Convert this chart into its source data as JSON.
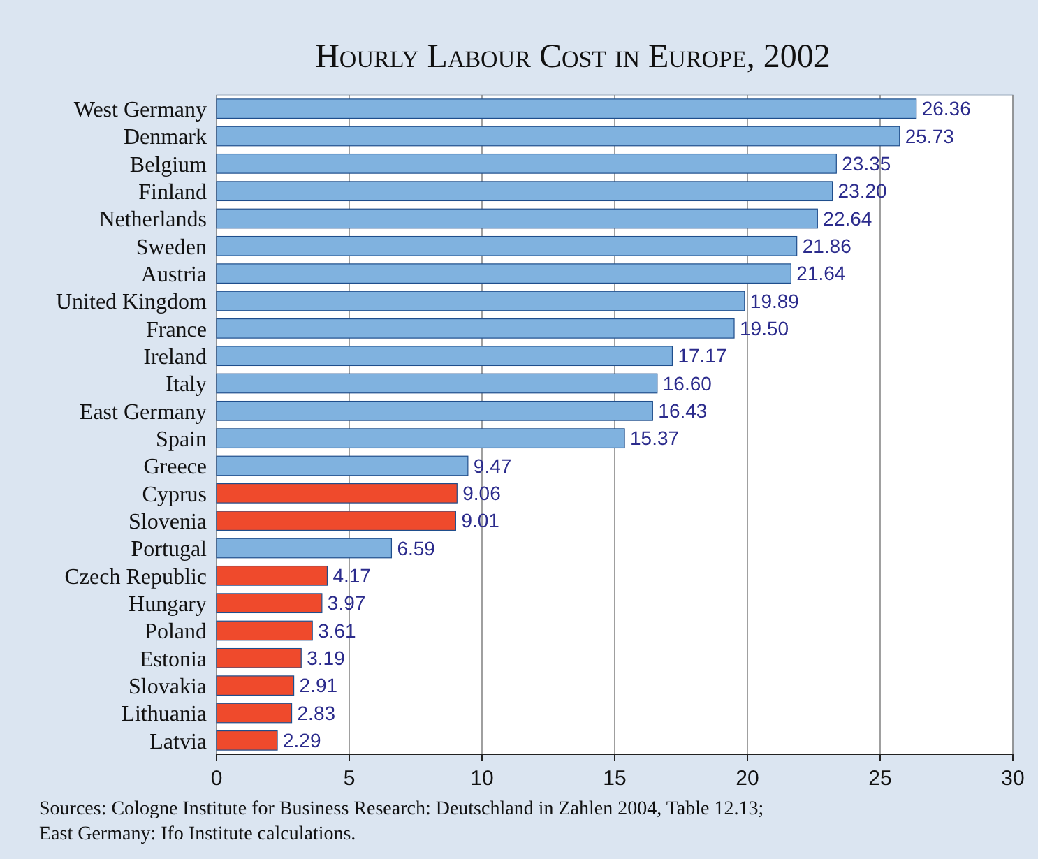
{
  "chart_data": {
    "type": "bar",
    "orientation": "horizontal",
    "title": "Hourly Labour Cost in Europe, 2002",
    "categories": [
      "West Germany",
      "Denmark",
      "Belgium",
      "Finland",
      "Netherlands",
      "Sweden",
      "Austria",
      "United Kingdom",
      "France",
      "Ireland",
      "Italy",
      "East Germany",
      "Spain",
      "Greece",
      "Cyprus",
      "Slovenia",
      "Portugal",
      "Czech Republic",
      "Hungary",
      "Poland",
      "Estonia",
      "Slovakia",
      "Lithuania",
      "Latvia"
    ],
    "values": [
      26.36,
      25.73,
      23.35,
      23.2,
      22.64,
      21.86,
      21.64,
      19.89,
      19.5,
      17.17,
      16.6,
      16.43,
      15.37,
      9.47,
      9.06,
      9.01,
      6.59,
      4.17,
      3.97,
      3.61,
      3.19,
      2.91,
      2.83,
      2.29
    ],
    "value_labels": [
      "26.36",
      "25.73",
      "23.35",
      "23.20",
      "22.64",
      "21.86",
      "21.64",
      "19.89",
      "19.50",
      "17.17",
      "16.60",
      "16.43",
      "15.37",
      "9.47",
      "9.06",
      "9.01",
      "6.59",
      "4.17",
      "3.97",
      "3.61",
      "3.19",
      "2.91",
      "2.83",
      "2.29"
    ],
    "colors": [
      "#80b2df",
      "#80b2df",
      "#80b2df",
      "#80b2df",
      "#80b2df",
      "#80b2df",
      "#80b2df",
      "#80b2df",
      "#80b2df",
      "#80b2df",
      "#80b2df",
      "#80b2df",
      "#80b2df",
      "#80b2df",
      "#ef4a2c",
      "#ef4a2c",
      "#80b2df",
      "#ef4a2c",
      "#ef4a2c",
      "#ef4a2c",
      "#ef4a2c",
      "#ef4a2c",
      "#ef4a2c",
      "#ef4a2c"
    ],
    "xlim": [
      0,
      30
    ],
    "xticks": [
      0,
      5,
      10,
      15,
      20,
      25,
      30
    ],
    "grid": "x",
    "annotations": [
      "Sources: Cologne Institute for Business Research: Deutschland in Zahlen 2004, Table 12.13;",
      "East Germany: Ifo Institute calculations."
    ]
  }
}
